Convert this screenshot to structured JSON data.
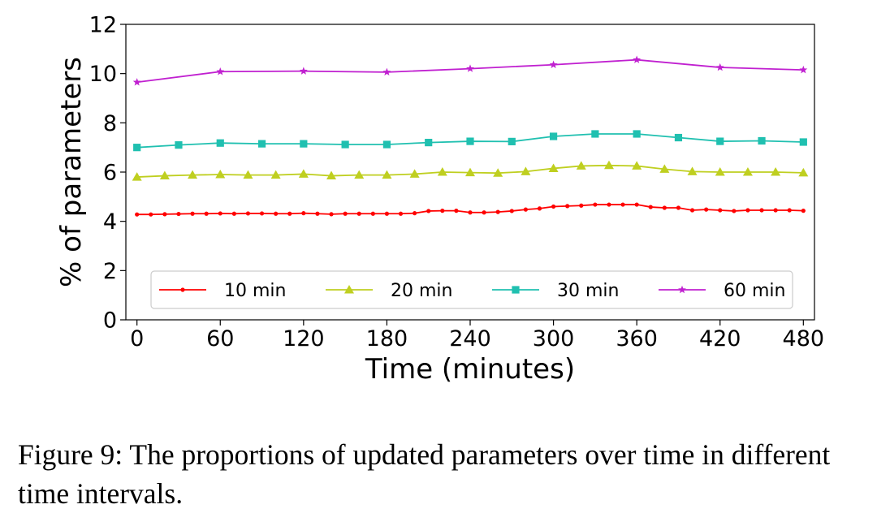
{
  "chart_data": {
    "type": "line",
    "xlabel": "Time (minutes)",
    "ylabel": "% of parameters",
    "xlim": [
      -8,
      488
    ],
    "ylim": [
      0,
      12
    ],
    "xticks": [
      0,
      60,
      120,
      180,
      240,
      300,
      360,
      420,
      480
    ],
    "yticks": [
      0,
      2,
      4,
      6,
      8,
      10,
      12
    ],
    "grid": false,
    "legend_position": "bottom",
    "series": [
      {
        "name": "10 min",
        "color": "#ff0000",
        "marker": "dot",
        "x": [
          0,
          10,
          20,
          30,
          40,
          50,
          60,
          70,
          80,
          90,
          100,
          110,
          120,
          130,
          140,
          150,
          160,
          170,
          180,
          190,
          200,
          210,
          220,
          230,
          240,
          250,
          260,
          270,
          280,
          290,
          300,
          310,
          320,
          330,
          340,
          350,
          360,
          370,
          380,
          390,
          400,
          410,
          420,
          430,
          440,
          450,
          460,
          470,
          480
        ],
        "y": [
          4.28,
          4.28,
          4.29,
          4.3,
          4.31,
          4.31,
          4.32,
          4.31,
          4.32,
          4.32,
          4.31,
          4.31,
          4.33,
          4.31,
          4.29,
          4.31,
          4.31,
          4.31,
          4.31,
          4.31,
          4.33,
          4.42,
          4.43,
          4.43,
          4.36,
          4.36,
          4.38,
          4.42,
          4.48,
          4.52,
          4.6,
          4.62,
          4.64,
          4.68,
          4.68,
          4.68,
          4.68,
          4.58,
          4.55,
          4.55,
          4.45,
          4.48,
          4.45,
          4.42,
          4.45,
          4.45,
          4.45,
          4.45,
          4.43
        ]
      },
      {
        "name": "20 min",
        "color": "#bfcf20",
        "marker": "triangle",
        "x": [
          0,
          20,
          40,
          60,
          80,
          100,
          120,
          140,
          160,
          180,
          200,
          220,
          240,
          260,
          280,
          300,
          320,
          340,
          360,
          380,
          400,
          420,
          440,
          460,
          480
        ],
        "y": [
          5.8,
          5.85,
          5.88,
          5.9,
          5.88,
          5.88,
          5.92,
          5.85,
          5.88,
          5.88,
          5.92,
          6.0,
          5.98,
          5.96,
          6.02,
          6.15,
          6.25,
          6.27,
          6.25,
          6.12,
          6.02,
          6.0,
          6.0,
          6.0,
          5.97
        ]
      },
      {
        "name": "30 min",
        "color": "#20c0b0",
        "marker": "square",
        "x": [
          0,
          30,
          60,
          90,
          120,
          150,
          180,
          210,
          240,
          270,
          300,
          330,
          360,
          390,
          420,
          450,
          480
        ],
        "y": [
          7.0,
          7.1,
          7.18,
          7.15,
          7.15,
          7.12,
          7.12,
          7.2,
          7.25,
          7.24,
          7.45,
          7.55,
          7.55,
          7.4,
          7.25,
          7.27,
          7.22
        ]
      },
      {
        "name": "60 min",
        "color": "#c020d0",
        "marker": "star",
        "x": [
          0,
          60,
          120,
          180,
          240,
          300,
          360,
          420,
          480
        ],
        "y": [
          9.65,
          10.08,
          10.1,
          10.06,
          10.2,
          10.36,
          10.56,
          10.25,
          10.15
        ]
      }
    ]
  },
  "caption": "Figure 9: The proportions of updated parameters over time in different time intervals."
}
